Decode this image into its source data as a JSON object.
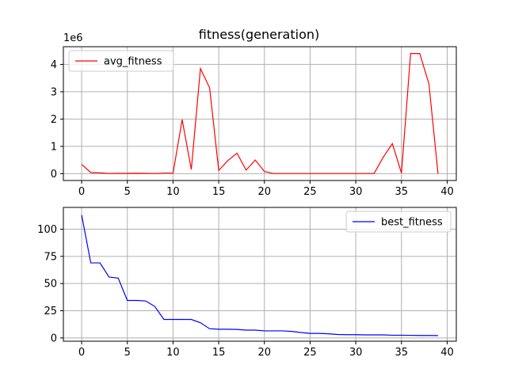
{
  "title": "fitness(generation)",
  "chart_data": [
    {
      "type": "line",
      "title": "fitness(generation)",
      "xlabel": "",
      "ylabel": "",
      "xlim": [
        -2,
        41
      ],
      "ylim": [
        -250000,
        4650000
      ],
      "xticks": [
        0,
        5,
        10,
        15,
        20,
        25,
        30,
        35,
        40
      ],
      "xtick_labels": [
        "0",
        "5",
        "10",
        "15",
        "20",
        "25",
        "30",
        "35",
        "40"
      ],
      "yticks": [
        0,
        1000000,
        2000000,
        3000000,
        4000000
      ],
      "ytick_labels": [
        "0",
        "1",
        "2",
        "3",
        "4"
      ],
      "offset_label": "1e6",
      "grid": true,
      "legend_position": "upper-left",
      "series": [
        {
          "name": "avg_fitness",
          "color": "#ff0000",
          "x": [
            0,
            1,
            2,
            3,
            4,
            5,
            6,
            7,
            8,
            9,
            10,
            11,
            12,
            13,
            14,
            15,
            16,
            17,
            18,
            19,
            20,
            21,
            22,
            23,
            24,
            25,
            26,
            27,
            28,
            29,
            30,
            31,
            32,
            33,
            34,
            35,
            36,
            37,
            38,
            39
          ],
          "values": [
            340000,
            40000,
            30000,
            5000,
            10000,
            10000,
            15000,
            10000,
            5000,
            20000,
            20000,
            1980000,
            150000,
            3850000,
            3150000,
            120000,
            480000,
            750000,
            130000,
            500000,
            80000,
            5000,
            5000,
            5000,
            5000,
            5000,
            5000,
            5000,
            5000,
            5000,
            5000,
            5000,
            5000,
            600000,
            1100000,
            20000,
            4400000,
            4400000,
            3300000,
            0
          ]
        }
      ]
    },
    {
      "type": "line",
      "title": "",
      "xlabel": "",
      "ylabel": "",
      "xlim": [
        -2,
        41
      ],
      "ylim": [
        -3,
        120
      ],
      "xticks": [
        0,
        5,
        10,
        15,
        20,
        25,
        30,
        35,
        40
      ],
      "xtick_labels": [
        "0",
        "5",
        "10",
        "15",
        "20",
        "25",
        "30",
        "35",
        "40"
      ],
      "yticks": [
        0,
        25,
        50,
        75,
        100
      ],
      "ytick_labels": [
        "0",
        "25",
        "50",
        "75",
        "100"
      ],
      "grid": true,
      "legend_position": "upper-right",
      "series": [
        {
          "name": "best_fitness",
          "color": "#0000ff",
          "x": [
            0,
            1,
            2,
            3,
            4,
            5,
            6,
            7,
            8,
            9,
            10,
            11,
            12,
            13,
            14,
            15,
            16,
            17,
            18,
            19,
            20,
            21,
            22,
            23,
            24,
            25,
            26,
            27,
            28,
            29,
            30,
            31,
            32,
            33,
            34,
            35,
            36,
            37,
            38,
            39
          ],
          "values": [
            113,
            69,
            69,
            56,
            55,
            34.5,
            34.5,
            34,
            29,
            17,
            17,
            17,
            17,
            14,
            8.5,
            8,
            8,
            7.8,
            7.2,
            7.2,
            6.5,
            6.5,
            6.5,
            6,
            5,
            4.2,
            4.2,
            3.8,
            3.2,
            3,
            3,
            2.8,
            2.8,
            2.8,
            2.5,
            2.5,
            2.4,
            2.3,
            2.3,
            2.2
          ]
        }
      ]
    }
  ]
}
